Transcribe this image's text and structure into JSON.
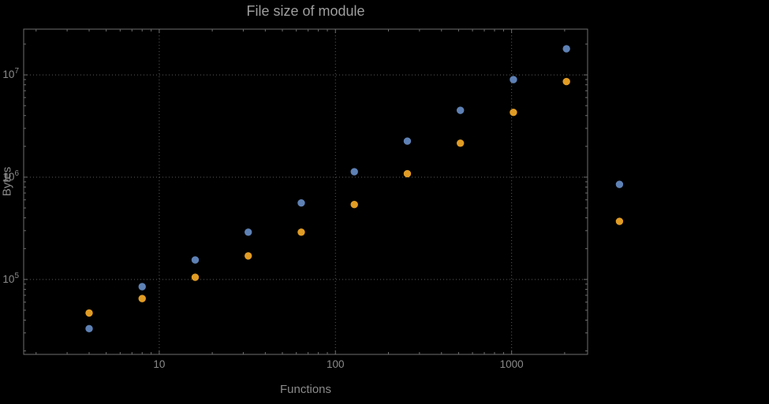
{
  "page": {
    "background_color": "#000000"
  },
  "chart_data": {
    "type": "scatter",
    "title": "File size of module",
    "xlabel": "Functions",
    "ylabel": "Bytes",
    "xscale": "log",
    "yscale": "log",
    "xlim": [
      1.7,
      2700
    ],
    "ylim": [
      18500,
      28000000
    ],
    "grid": "dotted",
    "legend": "none",
    "x": [
      4,
      8,
      16,
      32,
      64,
      128,
      256,
      512,
      1024,
      2048,
      4096
    ],
    "series": [
      {
        "name": "series-blue",
        "color": "#5E81B5",
        "values": [
          33000,
          85000,
          155000,
          290000,
          560000,
          1130000,
          2250000,
          4500000,
          9000000,
          18000000,
          850000
        ]
      },
      {
        "name": "series-orange",
        "color": "#E19C24",
        "values": [
          47000,
          65000,
          105000,
          170000,
          290000,
          540000,
          1080000,
          2150000,
          4300000,
          8600000,
          370000
        ]
      }
    ],
    "x_ticks": [
      {
        "value": 10,
        "label": "10"
      },
      {
        "value": 100,
        "label": "100"
      },
      {
        "value": 1000,
        "label": "1000"
      }
    ],
    "y_ticks": [
      {
        "value": 100000,
        "base": "10",
        "exp": "5"
      },
      {
        "value": 1000000,
        "base": "10",
        "exp": "6"
      },
      {
        "value": 10000000,
        "base": "10",
        "exp": "7"
      }
    ],
    "colors": {
      "frame": "#6e6e6e",
      "grid": "#5a5a5a",
      "tick_text": "#8a8a8a",
      "title_text": "#9e9e9e"
    }
  }
}
